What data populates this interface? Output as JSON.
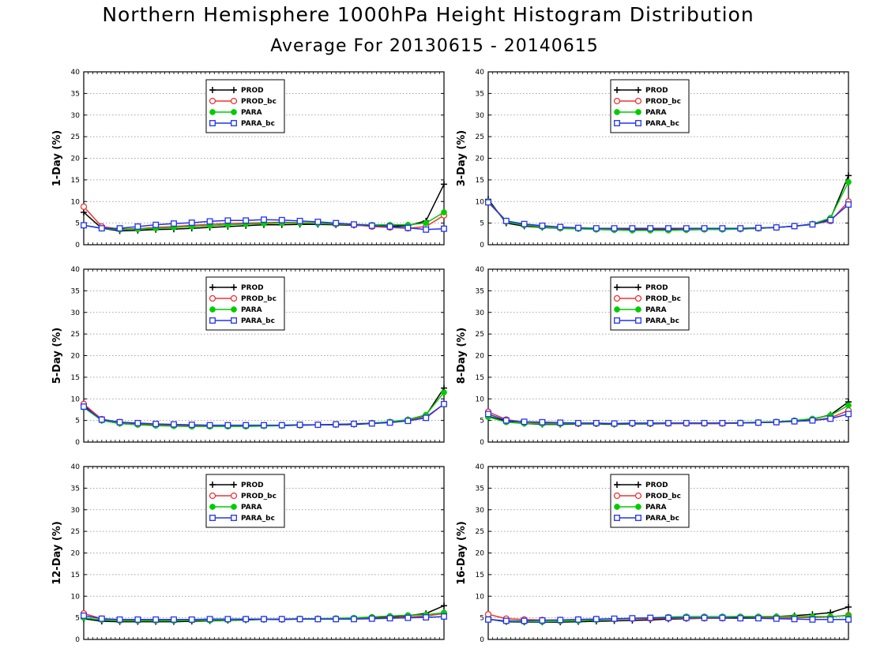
{
  "header": {
    "title": "Northern Hemisphere 1000hPa Height Histogram Distribution",
    "subtitle": "Average For 20130615 - 20140615"
  },
  "colors": {
    "PROD": "#000000",
    "PROD_bc": "#ee3333",
    "PARA": "#00cc00",
    "PARA_bc": "#2233ee"
  },
  "chart_data": [
    {
      "type": "line",
      "ylabel": "1-Day (%)",
      "ylim": [
        0,
        40
      ],
      "yticks": [
        0,
        5,
        10,
        15,
        20,
        25,
        30,
        35,
        40
      ],
      "grid": true,
      "legend": "top-center",
      "x": [
        1,
        2,
        3,
        4,
        5,
        6,
        7,
        8,
        9,
        10,
        11,
        12,
        13,
        14,
        15,
        16,
        17,
        18,
        19,
        20,
        21
      ],
      "series": [
        {
          "name": "PROD",
          "marker": "plus",
          "values": [
            7.5,
            3.8,
            3.2,
            3.3,
            3.5,
            3.6,
            3.8,
            4.0,
            4.2,
            4.4,
            4.6,
            4.6,
            4.7,
            4.7,
            4.6,
            4.5,
            4.4,
            4.3,
            4.4,
            5.5,
            14.0
          ]
        },
        {
          "name": "PROD_bc",
          "marker": "circle",
          "values": [
            8.8,
            4.2,
            3.6,
            3.7,
            4.0,
            4.2,
            4.5,
            4.7,
            4.9,
            5.0,
            5.1,
            5.2,
            5.1,
            5.0,
            4.8,
            4.6,
            4.2,
            4.0,
            3.8,
            4.2,
            6.8
          ]
        },
        {
          "name": "PARA",
          "marker": "dot",
          "values": [
            4.5,
            3.8,
            3.5,
            3.6,
            3.8,
            4.0,
            4.2,
            4.4,
            4.6,
            4.8,
            4.9,
            5.0,
            5.0,
            4.9,
            4.8,
            4.7,
            4.6,
            4.6,
            4.6,
            5.0,
            7.5
          ]
        },
        {
          "name": "PARA_bc",
          "marker": "square",
          "values": [
            4.5,
            3.8,
            3.8,
            4.2,
            4.6,
            4.9,
            5.1,
            5.4,
            5.6,
            5.6,
            5.8,
            5.7,
            5.5,
            5.3,
            5.0,
            4.7,
            4.4,
            4.2,
            3.9,
            3.5,
            3.7
          ]
        }
      ]
    },
    {
      "type": "line",
      "ylabel": "3-Day (%)",
      "ylim": [
        0,
        40
      ],
      "yticks": [
        0,
        5,
        10,
        15,
        20,
        25,
        30,
        35,
        40
      ],
      "grid": true,
      "legend": "top-center",
      "x": [
        1,
        2,
        3,
        4,
        5,
        6,
        7,
        8,
        9,
        10,
        11,
        12,
        13,
        14,
        15,
        16,
        17,
        18,
        19,
        20,
        21
      ],
      "series": [
        {
          "name": "PROD",
          "marker": "plus",
          "values": [
            10.5,
            5.0,
            4.3,
            4.0,
            3.8,
            3.7,
            3.6,
            3.5,
            3.5,
            3.5,
            3.5,
            3.5,
            3.6,
            3.6,
            3.6,
            3.8,
            4.0,
            4.3,
            4.8,
            6.0,
            16.0
          ]
        },
        {
          "name": "PROD_bc",
          "marker": "circle",
          "values": [
            10.0,
            5.5,
            4.6,
            4.3,
            4.0,
            3.8,
            3.7,
            3.7,
            3.7,
            3.7,
            3.7,
            3.7,
            3.7,
            3.7,
            3.7,
            3.8,
            4.0,
            4.3,
            4.7,
            5.5,
            10.0
          ]
        },
        {
          "name": "PARA",
          "marker": "dot",
          "values": [
            10.0,
            5.3,
            4.5,
            4.1,
            3.8,
            3.7,
            3.5,
            3.4,
            3.3,
            3.3,
            3.3,
            3.4,
            3.5,
            3.5,
            3.6,
            3.8,
            4.0,
            4.3,
            4.8,
            6.2,
            14.5
          ]
        },
        {
          "name": "PARA_bc",
          "marker": "square",
          "values": [
            9.8,
            5.5,
            4.8,
            4.4,
            4.1,
            3.9,
            3.8,
            3.8,
            3.8,
            3.8,
            3.8,
            3.8,
            3.8,
            3.8,
            3.8,
            3.9,
            4.0,
            4.3,
            4.7,
            5.7,
            9.3
          ]
        }
      ]
    },
    {
      "type": "line",
      "ylabel": "5-Day (%)",
      "ylim": [
        0,
        40
      ],
      "yticks": [
        0,
        5,
        10,
        15,
        20,
        25,
        30,
        35,
        40
      ],
      "grid": true,
      "legend": "top-center",
      "x": [
        1,
        2,
        3,
        4,
        5,
        6,
        7,
        8,
        9,
        10,
        11,
        12,
        13,
        14,
        15,
        16,
        17,
        18,
        19,
        20,
        21
      ],
      "series": [
        {
          "name": "PROD",
          "marker": "plus",
          "values": [
            8.5,
            5.0,
            4.3,
            4.1,
            3.9,
            3.8,
            3.7,
            3.7,
            3.7,
            3.7,
            3.8,
            3.8,
            3.9,
            4.0,
            4.0,
            4.1,
            4.3,
            4.6,
            5.2,
            6.2,
            12.5
          ]
        },
        {
          "name": "PROD_bc",
          "marker": "circle",
          "values": [
            8.8,
            5.3,
            4.6,
            4.3,
            4.1,
            4.0,
            3.9,
            3.8,
            3.8,
            3.8,
            3.8,
            3.9,
            3.9,
            4.0,
            4.1,
            4.2,
            4.4,
            4.6,
            5.0,
            5.8,
            8.8
          ]
        },
        {
          "name": "PARA",
          "marker": "dot",
          "values": [
            8.0,
            5.0,
            4.3,
            4.0,
            3.8,
            3.7,
            3.6,
            3.6,
            3.6,
            3.6,
            3.7,
            3.8,
            3.9,
            4.0,
            4.1,
            4.2,
            4.4,
            4.7,
            5.2,
            6.3,
            11.5
          ]
        },
        {
          "name": "PARA_bc",
          "marker": "square",
          "values": [
            8.2,
            5.2,
            4.6,
            4.4,
            4.2,
            4.1,
            4.0,
            3.9,
            3.9,
            3.9,
            3.9,
            3.9,
            4.0,
            4.0,
            4.1,
            4.2,
            4.3,
            4.5,
            4.9,
            5.6,
            8.8
          ]
        }
      ]
    },
    {
      "type": "line",
      "ylabel": "8-Day (%)",
      "ylim": [
        0,
        40
      ],
      "yticks": [
        0,
        5,
        10,
        15,
        20,
        25,
        30,
        35,
        40
      ],
      "grid": true,
      "legend": "top-center",
      "x": [
        1,
        2,
        3,
        4,
        5,
        6,
        7,
        8,
        9,
        10,
        11,
        12,
        13,
        14,
        15,
        16,
        17,
        18,
        19,
        20,
        21
      ],
      "series": [
        {
          "name": "PROD",
          "marker": "plus",
          "values": [
            6.0,
            4.8,
            4.3,
            4.1,
            4.1,
            4.2,
            4.2,
            4.1,
            4.2,
            4.2,
            4.3,
            4.3,
            4.3,
            4.3,
            4.4,
            4.5,
            4.6,
            4.9,
            5.3,
            6.3,
            9.3
          ]
        },
        {
          "name": "PROD_bc",
          "marker": "circle",
          "values": [
            7.0,
            5.2,
            4.6,
            4.4,
            4.4,
            4.3,
            4.3,
            4.2,
            4.3,
            4.3,
            4.3,
            4.3,
            4.3,
            4.3,
            4.4,
            4.5,
            4.6,
            4.8,
            5.0,
            5.6,
            7.3
          ]
        },
        {
          "name": "PARA",
          "marker": "dot",
          "values": [
            5.8,
            4.6,
            4.3,
            4.2,
            4.2,
            4.3,
            4.3,
            4.2,
            4.3,
            4.3,
            4.4,
            4.4,
            4.4,
            4.4,
            4.5,
            4.6,
            4.7,
            5.0,
            5.4,
            6.2,
            8.5
          ]
        },
        {
          "name": "PARA_bc",
          "marker": "square",
          "values": [
            6.5,
            5.0,
            4.7,
            4.6,
            4.5,
            4.4,
            4.4,
            4.3,
            4.4,
            4.4,
            4.4,
            4.4,
            4.4,
            4.4,
            4.4,
            4.5,
            4.6,
            4.8,
            5.0,
            5.4,
            6.5
          ]
        }
      ]
    },
    {
      "type": "line",
      "ylabel": "12-Day (%)",
      "ylim": [
        0,
        40
      ],
      "yticks": [
        0,
        5,
        10,
        15,
        20,
        25,
        30,
        35,
        40
      ],
      "grid": true,
      "legend": "top-center",
      "x": [
        1,
        2,
        3,
        4,
        5,
        6,
        7,
        8,
        9,
        10,
        11,
        12,
        13,
        14,
        15,
        16,
        17,
        18,
        19,
        20,
        21
      ],
      "series": [
        {
          "name": "PROD",
          "marker": "plus",
          "values": [
            4.8,
            4.2,
            4.1,
            4.1,
            4.1,
            4.1,
            4.2,
            4.3,
            4.4,
            4.5,
            4.6,
            4.6,
            4.7,
            4.8,
            4.8,
            4.9,
            5.0,
            5.2,
            5.5,
            6.0,
            7.8
          ]
        },
        {
          "name": "PROD_bc",
          "marker": "circle",
          "values": [
            6.0,
            4.8,
            4.5,
            4.5,
            4.5,
            4.5,
            4.5,
            4.6,
            4.6,
            4.7,
            4.7,
            4.7,
            4.7,
            4.7,
            4.7,
            4.8,
            4.9,
            5.0,
            5.2,
            5.4,
            6.0
          ]
        },
        {
          "name": "PARA",
          "marker": "dot",
          "values": [
            5.0,
            4.5,
            4.3,
            4.3,
            4.3,
            4.3,
            4.4,
            4.4,
            4.5,
            4.6,
            4.6,
            4.7,
            4.8,
            4.8,
            4.9,
            5.0,
            5.2,
            5.4,
            5.6,
            5.7,
            6.2
          ]
        },
        {
          "name": "PARA_bc",
          "marker": "square",
          "values": [
            5.5,
            4.8,
            4.6,
            4.6,
            4.6,
            4.6,
            4.6,
            4.7,
            4.7,
            4.7,
            4.7,
            4.7,
            4.7,
            4.7,
            4.7,
            4.7,
            4.8,
            4.9,
            5.0,
            5.1,
            5.3
          ]
        }
      ]
    },
    {
      "type": "line",
      "ylabel": "16-Day (%)",
      "ylim": [
        0,
        40
      ],
      "yticks": [
        0,
        5,
        10,
        15,
        20,
        25,
        30,
        35,
        40
      ],
      "grid": true,
      "legend": "top-center",
      "x": [
        1,
        2,
        3,
        4,
        5,
        6,
        7,
        8,
        9,
        10,
        11,
        12,
        13,
        14,
        15,
        16,
        17,
        18,
        19,
        20,
        21
      ],
      "series": [
        {
          "name": "PROD",
          "marker": "plus",
          "values": [
            4.7,
            4.1,
            4.0,
            4.0,
            4.0,
            4.1,
            4.2,
            4.3,
            4.4,
            4.5,
            4.7,
            4.8,
            4.9,
            5.0,
            5.1,
            5.2,
            5.3,
            5.5,
            5.8,
            6.2,
            7.5
          ]
        },
        {
          "name": "PROD_bc",
          "marker": "circle",
          "values": [
            5.8,
            4.8,
            4.6,
            4.5,
            4.5,
            4.6,
            4.7,
            4.7,
            4.8,
            4.8,
            4.9,
            4.9,
            4.9,
            4.9,
            4.9,
            5.0,
            5.0,
            5.0,
            5.1,
            5.2,
            5.6
          ]
        },
        {
          "name": "PARA",
          "marker": "dot",
          "values": [
            4.7,
            4.2,
            4.1,
            4.1,
            4.2,
            4.3,
            4.5,
            4.7,
            4.9,
            5.0,
            5.2,
            5.3,
            5.3,
            5.3,
            5.3,
            5.3,
            5.3,
            5.3,
            5.3,
            5.3,
            5.5
          ]
        },
        {
          "name": "PARA_bc",
          "marker": "square",
          "values": [
            4.6,
            4.3,
            4.3,
            4.4,
            4.5,
            4.6,
            4.7,
            4.8,
            4.9,
            5.0,
            5.0,
            5.0,
            5.0,
            5.0,
            4.9,
            4.9,
            4.8,
            4.7,
            4.6,
            4.6,
            4.6
          ]
        }
      ]
    }
  ]
}
